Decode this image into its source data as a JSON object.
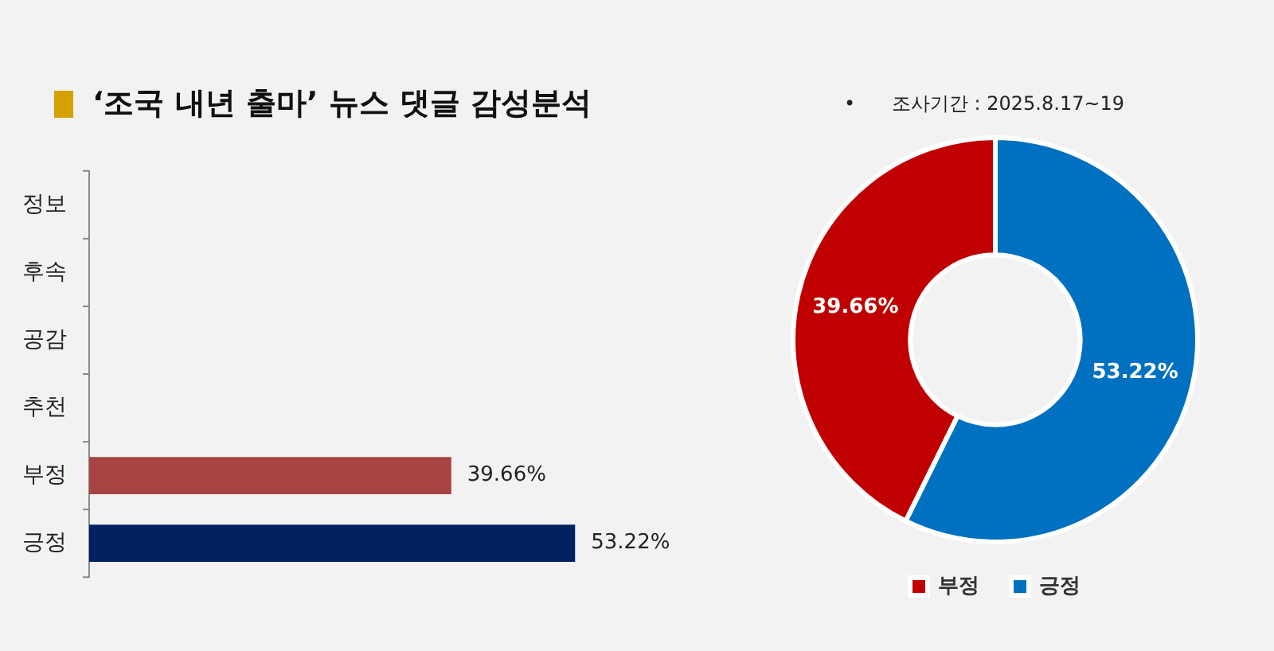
{
  "chart_data": [
    {
      "type": "bar",
      "title": "‘조국 내년 출마’ 뉴스 댓글 감성분석",
      "orientation": "horizontal",
      "categories": [
        "정보",
        "후속",
        "공감",
        "추천",
        "부정",
        "긍정"
      ],
      "values": [
        null,
        null,
        null,
        null,
        39.66,
        53.22
      ],
      "colors": [
        "#a84444",
        "#a84444",
        "#a84444",
        "#a84444",
        "#a84444",
        "#002060"
      ],
      "value_labels": [
        null,
        null,
        null,
        null,
        "39.66%",
        "53.22%"
      ],
      "legend": false
    },
    {
      "type": "donut",
      "annotations": [
        "•      조사기간 : 2025.8.17~19"
      ],
      "categories": [
        "부정",
        "긍정"
      ],
      "values": [
        39.66,
        53.22
      ],
      "colors": [
        "#c00000",
        "#0070c0"
      ],
      "value_labels": [
        "39.66%",
        "53.22%"
      ],
      "legend": "bottom"
    }
  ]
}
